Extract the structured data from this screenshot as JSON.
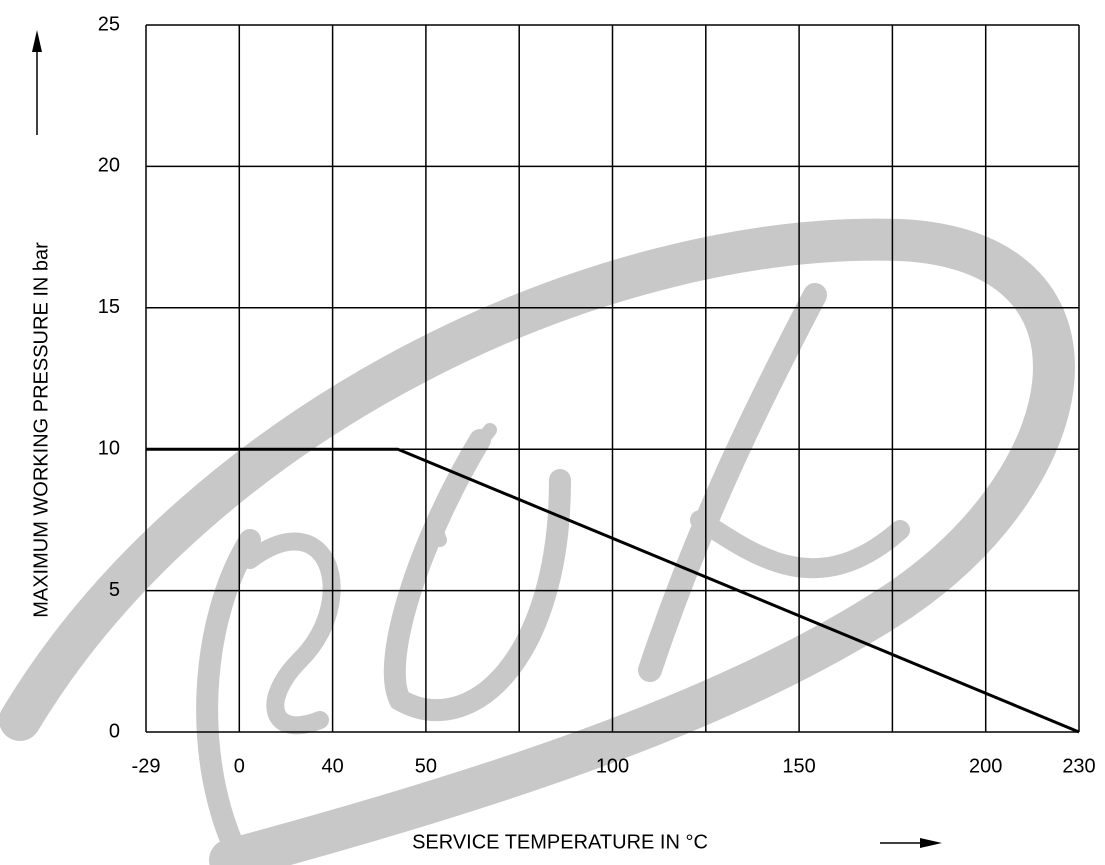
{
  "chart_data": {
    "type": "line",
    "ylabel": "MAXIMUM WORKING PRESSURE IN bar",
    "xlabel": "SERVICE TEMPERATURE IN °C",
    "categories": [
      -29,
      0,
      40,
      50,
      null,
      100,
      null,
      150,
      null,
      200,
      230
    ],
    "series": [
      {
        "color": "#000000",
        "x": [
          -29,
          47,
          230
        ],
        "values": [
          10,
          10,
          0
        ]
      }
    ],
    "ylim": [
      0,
      25
    ],
    "yticks": [
      0,
      5,
      10,
      15,
      20,
      25
    ],
    "grid": true
  }
}
